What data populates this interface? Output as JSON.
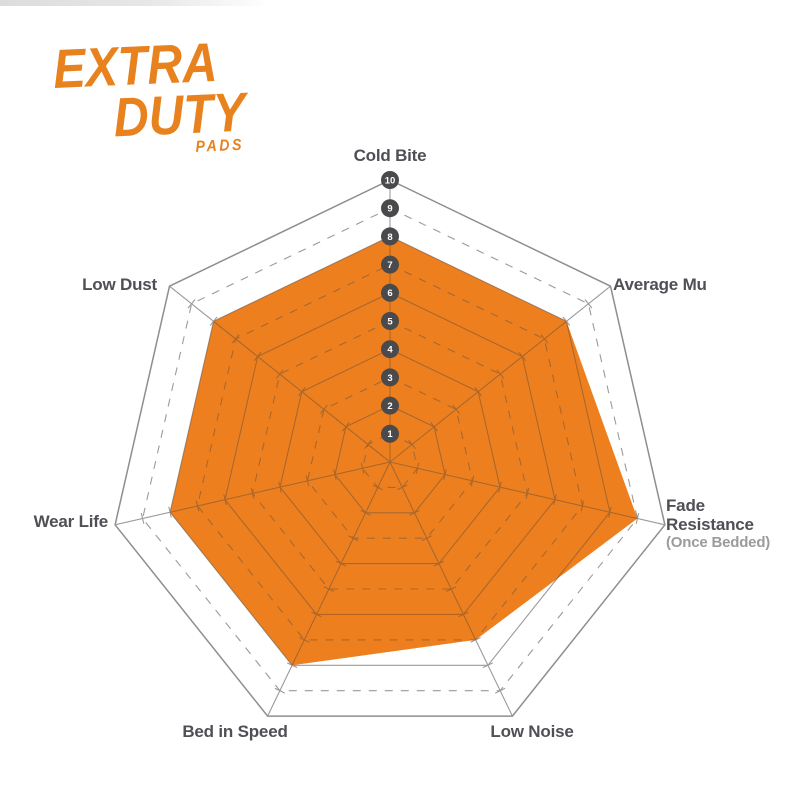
{
  "page": {
    "background": "#ffffff"
  },
  "logo": {
    "line1": "EXTRA",
    "line2": "DUTY",
    "line3": "PADS",
    "color": "#E8821F"
  },
  "chart_data": {
    "type": "radar",
    "title": "",
    "axes": [
      {
        "label": "Cold Bite",
        "value": 8
      },
      {
        "label": "Average Mu",
        "value": 8
      },
      {
        "label": "Fade Resistance",
        "sublabel": "(Once Bedded)",
        "value": 9
      },
      {
        "label": "Low Noise",
        "value": 7
      },
      {
        "label": "Bed in Speed",
        "value": 8
      },
      {
        "label": "Wear Life",
        "value": 8
      },
      {
        "label": "Low Dust",
        "value": 8
      }
    ],
    "scale": {
      "min": 1,
      "max": 10,
      "badge_axis": "Cold Bite",
      "badge_values": [
        1,
        2,
        3,
        4,
        5,
        6,
        7,
        8,
        9,
        10
      ]
    },
    "grid": {
      "rings": 10,
      "solid_rings": "even",
      "dashed_rings": "odd",
      "legend": "none"
    }
  },
  "colors": {
    "fill_orange": "#EE7F1E",
    "grid_gray": "#9A9A9A",
    "grid_outer": "#8E8E8E",
    "grid_inner_brown": "#B4641C",
    "badge_bg": "#4A4A4C",
    "badge_text": "#FFFFFF",
    "label_text": "#4F4F55",
    "sublabel_text": "#9B9B9D"
  }
}
